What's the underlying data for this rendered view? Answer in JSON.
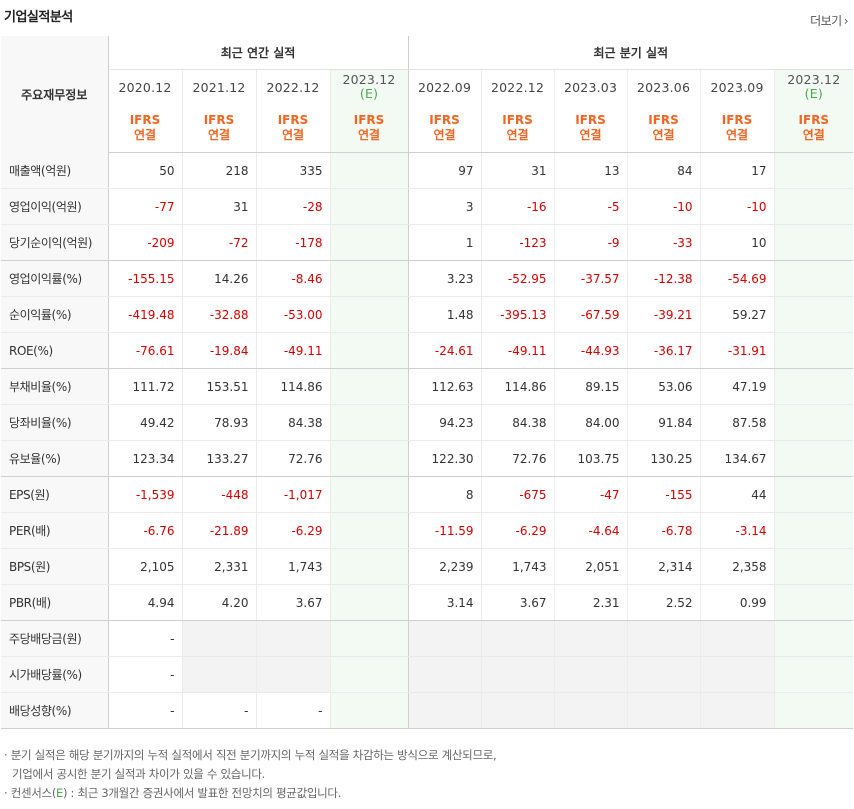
{
  "header": {
    "title": "기업실적분석",
    "more_label": "더보기",
    "more_icon": "chevron-right-icon"
  },
  "table": {
    "corner_label": "주요재무정보",
    "group_annual": "최근 연간 실적",
    "group_quarter": "최근 분기 실적",
    "periods": [
      {
        "label": "2020.12",
        "est": ""
      },
      {
        "label": "2021.12",
        "est": ""
      },
      {
        "label": "2022.12",
        "est": ""
      },
      {
        "label": "2023.12",
        "est": "(E)"
      },
      {
        "label": "2022.09",
        "est": ""
      },
      {
        "label": "2022.12",
        "est": ""
      },
      {
        "label": "2023.03",
        "est": ""
      },
      {
        "label": "2023.06",
        "est": ""
      },
      {
        "label": "2023.09",
        "est": ""
      },
      {
        "label": "2023.12",
        "est": "(E)"
      }
    ],
    "ifrs_line1": "IFRS",
    "ifrs_line2": "연결",
    "rows": [
      {
        "label": "매출액(억원)",
        "values": [
          "50",
          "218",
          "335",
          "",
          "97",
          "31",
          "13",
          "84",
          "17",
          ""
        ]
      },
      {
        "label": "영업이익(억원)",
        "values": [
          "-77",
          "31",
          "-28",
          "",
          "3",
          "-16",
          "-5",
          "-10",
          "-10",
          ""
        ]
      },
      {
        "label": "당기순이익(억원)",
        "values": [
          "-209",
          "-72",
          "-178",
          "",
          "1",
          "-123",
          "-9",
          "-33",
          "10",
          ""
        ]
      },
      {
        "label": "영업이익률(%)",
        "values": [
          "-155.15",
          "14.26",
          "-8.46",
          "",
          "3.23",
          "-52.95",
          "-37.57",
          "-12.38",
          "-54.69",
          ""
        ]
      },
      {
        "label": "순이익률(%)",
        "values": [
          "-419.48",
          "-32.88",
          "-53.00",
          "",
          "1.48",
          "-395.13",
          "-67.59",
          "-39.21",
          "59.27",
          ""
        ]
      },
      {
        "label": "ROE(%)",
        "values": [
          "-76.61",
          "-19.84",
          "-49.11",
          "",
          "-24.61",
          "-49.11",
          "-44.93",
          "-36.17",
          "-31.91",
          ""
        ]
      },
      {
        "label": "부채비율(%)",
        "values": [
          "111.72",
          "153.51",
          "114.86",
          "",
          "112.63",
          "114.86",
          "89.15",
          "53.06",
          "47.19",
          ""
        ]
      },
      {
        "label": "당좌비율(%)",
        "values": [
          "49.42",
          "78.93",
          "84.38",
          "",
          "94.23",
          "84.38",
          "84.00",
          "91.84",
          "87.58",
          ""
        ]
      },
      {
        "label": "유보율(%)",
        "values": [
          "123.34",
          "133.27",
          "72.76",
          "",
          "122.30",
          "72.76",
          "103.75",
          "130.25",
          "134.67",
          ""
        ]
      },
      {
        "label": "EPS(원)",
        "values": [
          "-1,539",
          "-448",
          "-1,017",
          "",
          "8",
          "-675",
          "-47",
          "-155",
          "44",
          ""
        ]
      },
      {
        "label": "PER(배)",
        "values": [
          "-6.76",
          "-21.89",
          "-6.29",
          "",
          "-11.59",
          "-6.29",
          "-4.64",
          "-6.78",
          "-3.14",
          ""
        ]
      },
      {
        "label": "BPS(원)",
        "values": [
          "2,105",
          "2,331",
          "1,743",
          "",
          "2,239",
          "1,743",
          "2,051",
          "2,314",
          "2,358",
          ""
        ]
      },
      {
        "label": "PBR(배)",
        "values": [
          "4.94",
          "4.20",
          "3.67",
          "",
          "3.14",
          "3.67",
          "2.31",
          "2.52",
          "0.99",
          ""
        ]
      },
      {
        "label": "주당배당금(원)",
        "values": [
          "-",
          "",
          "",
          "",
          "",
          "",
          "",
          "",
          "",
          ""
        ]
      },
      {
        "label": "시가배당률(%)",
        "values": [
          "-",
          "",
          "",
          "",
          "",
          "",
          "",
          "",
          "",
          ""
        ]
      },
      {
        "label": "배당성향(%)",
        "values": [
          "-",
          "-",
          "-",
          "",
          "",
          "",
          "",
          "",
          "",
          ""
        ]
      }
    ]
  },
  "notes": {
    "line1": "분기 실적은 해당 분기까지의 누적 실적에서 직전 분기까지의 누적 실적을 차감하는 방식으로 계산되므로,",
    "line2": "기업에서 공시한 분기 실적과 차이가 있을 수 있습니다.",
    "line3_pre": "컨센서스(",
    "line3_e": "E",
    "line3_post": ") : 최근 3개월간 증권사에서 발표한 전망치의 평균값입니다.",
    "bullet": "·",
    "colors": {
      "negative": "#d40000",
      "ifrs": "#f26522",
      "estimate": "#4caa4c"
    }
  }
}
